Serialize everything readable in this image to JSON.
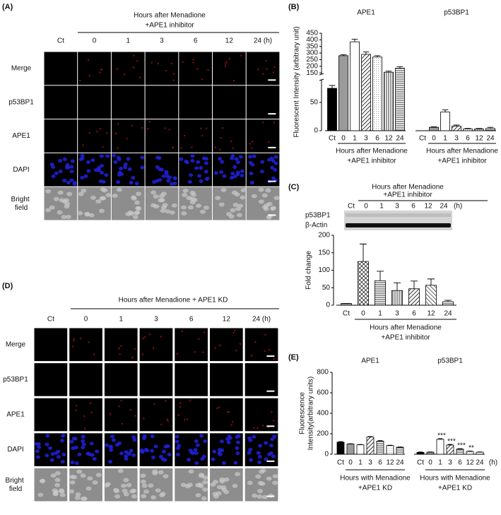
{
  "figure": {
    "panel_a": {
      "panel": "(A)",
      "header": [
        "Hours after Menadione",
        "+APE1 inhibitor"
      ],
      "columns": [
        "Ct",
        "0",
        "1",
        "3",
        "6",
        "12",
        "24 (h)"
      ],
      "rows": [
        "Merge",
        "p53BP1",
        "APE1",
        "DAPI",
        "Bright field"
      ],
      "row_colors": [
        "#111111",
        "#2e9e3e",
        "#e02020",
        "#2323c0",
        "#999999"
      ]
    },
    "panel_d": {
      "panel": "(D)",
      "header": [
        "Hours after Menadione + APE1 KD"
      ],
      "columns": [
        "Ct",
        "0",
        "1",
        "3",
        "6",
        "12",
        "24 (h)"
      ],
      "rows": [
        "Merge",
        "p53BP1",
        "APE1",
        "DAPI",
        "Bright field"
      ],
      "row_colors": [
        "#111111",
        "#2e9e3e",
        "#e02020",
        "#2323c0",
        "#999999"
      ]
    },
    "panel_c_blot": {
      "header": [
        "Hours after Menadione",
        "+APE1 inhibitor"
      ],
      "columns": [
        "Ct",
        "0",
        "1",
        "3",
        "6",
        "12",
        "24",
        "(h)"
      ],
      "rows": [
        "p53BP1",
        "β-Actin"
      ]
    }
  },
  "chart_data": [
    {
      "type": "bar",
      "panel": "(B)",
      "ylabel": [
        "Fluorescent Intensity (arbitrary unit)"
      ],
      "ylim": [
        0,
        450
      ],
      "ybreak": [
        90,
        140
      ],
      "yticks": [
        0,
        50,
        150,
        200,
        250,
        300,
        350,
        400,
        450
      ],
      "patterns": [
        "black",
        "gray",
        "white",
        "diag",
        "dots",
        "vert",
        "horiz"
      ],
      "groups": [
        {
          "name": "APE1",
          "categories": [
            "Ct",
            "0",
            "1",
            "3",
            "6",
            "12",
            "24"
          ],
          "values": [
            75,
            280,
            385,
            290,
            270,
            155,
            185
          ],
          "errors": [
            5,
            8,
            20,
            18,
            10,
            8,
            12
          ],
          "xlabel": [
            "Hours after Menadione",
            "+APE1 inhibitor"
          ]
        },
        {
          "name": "p53BP1",
          "categories": [
            "Ct",
            "0",
            "1",
            "3",
            "6",
            "12",
            "24"
          ],
          "values": [
            0,
            6,
            33,
            8,
            3,
            3,
            4
          ],
          "errors": [
            0,
            1,
            4,
            2,
            1,
            1,
            2
          ],
          "xlabel": [
            "Hours after Menadione",
            "+APE1 inhibitor"
          ]
        }
      ]
    },
    {
      "type": "bar",
      "panel": "(C)",
      "ylabel": [
        "Fold change"
      ],
      "ylim": [
        0,
        200
      ],
      "yticks": [
        0,
        50,
        100,
        150,
        200
      ],
      "patterns": [
        "gray",
        "cross",
        "horiz",
        "vert",
        "diag",
        "diag2",
        "horiz"
      ],
      "groups": [
        {
          "categories": [
            "Ct",
            "0",
            "1",
            "3",
            "6",
            "12",
            "24"
          ],
          "values": [
            5,
            125,
            70,
            42,
            47,
            57,
            10
          ],
          "errors": [
            0,
            50,
            27,
            22,
            22,
            18,
            4
          ],
          "xlabel": [
            "Hours after Menadione",
            "+APE1 inhibitor"
          ]
        }
      ]
    },
    {
      "type": "bar",
      "panel": "(E)",
      "ylabel": [
        "Fluorescence",
        "Intensity(arbitrary units)"
      ],
      "ylim": [
        0,
        800
      ],
      "yticks": [
        0,
        200,
        400,
        600,
        800
      ],
      "x_unit": "(h)",
      "patterns": [
        "black",
        "gray",
        "white",
        "diag",
        "horiz",
        "dots",
        "horiz"
      ],
      "groups": [
        {
          "name": "APE1",
          "categories": [
            "Ct",
            "0",
            "1",
            "3",
            "6",
            "12",
            "24"
          ],
          "values": [
            118,
            100,
            92,
            168,
            128,
            85,
            68
          ],
          "errors": [
            6,
            3,
            3,
            5,
            5,
            3,
            3
          ],
          "xlabel": [
            "Hours with Menadione",
            "+APE1 KD"
          ]
        },
        {
          "name": "p53BP1",
          "categories": [
            "Ct",
            "0",
            "1",
            "3",
            "6",
            "12",
            "24"
          ],
          "values": [
            18,
            20,
            145,
            90,
            50,
            28,
            20
          ],
          "errors": [
            4,
            3,
            8,
            6,
            5,
            3,
            3
          ],
          "annotations": [
            null,
            null,
            "***",
            "***",
            "***",
            "**",
            null
          ],
          "xlabel": [
            "Hours with Menadione",
            "+APE1 KD"
          ]
        }
      ]
    }
  ]
}
